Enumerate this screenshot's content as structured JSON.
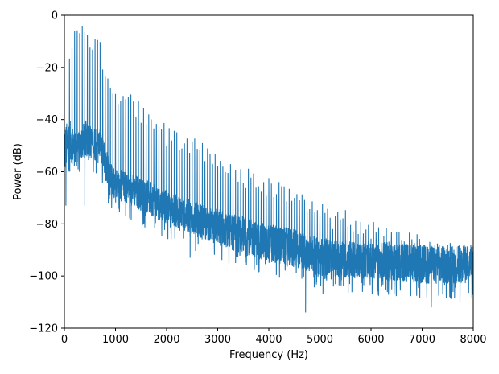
{
  "chart_data": {
    "type": "line",
    "title": "",
    "xlabel": "Frequency (Hz)",
    "ylabel": "Power (dB)",
    "xlim": [
      0,
      8000
    ],
    "ylim": [
      -120,
      0
    ],
    "x_ticks": [
      0,
      1000,
      2000,
      3000,
      4000,
      5000,
      6000,
      7000,
      8000
    ],
    "x_tick_labels": [
      "0",
      "1000",
      "2000",
      "3000",
      "4000",
      "5000",
      "6000",
      "7000",
      "8000"
    ],
    "y_ticks": [
      0,
      -20,
      -40,
      -60,
      -80,
      -100,
      -120
    ],
    "y_tick_labels": [
      "0",
      "−20",
      "−40",
      "−60",
      "−80",
      "−100",
      "−120"
    ],
    "grid": false,
    "legend": "none",
    "series_color": "#1f77b4",
    "series": [
      {
        "x": [
          0,
          100,
          200,
          300,
          400,
          500,
          600,
          700,
          800,
          900,
          1000,
          1200,
          1400,
          1600,
          1800,
          2000,
          2250,
          2500,
          2750,
          3000,
          3250,
          3500,
          3750,
          4000,
          4250,
          4500,
          4750,
          5000,
          5250,
          5500,
          5750,
          6000,
          6250,
          6500,
          6750,
          7000,
          7250,
          7500,
          7750,
          8000
        ],
        "peak": [
          -38,
          -15,
          -5,
          -1,
          0,
          -6,
          -5,
          -9,
          -20,
          -24,
          -28,
          -27,
          -32,
          -35,
          -38,
          -42,
          -44,
          -46,
          -49,
          -50,
          -55,
          -58,
          -60,
          -62,
          -64,
          -66,
          -68,
          -72,
          -74,
          -74,
          -76,
          -78,
          -80,
          -82,
          -83,
          -84,
          -86,
          -87,
          -88,
          -89
        ],
        "upper": [
          -42,
          -40,
          -44,
          -45,
          -40,
          -42,
          -43,
          -44,
          -50,
          -56,
          -58,
          -60,
          -61,
          -63,
          -65,
          -67,
          -69,
          -71,
          -73,
          -74,
          -76,
          -77,
          -79,
          -80,
          -81,
          -82,
          -84,
          -85,
          -86,
          -86,
          -87,
          -87,
          -87,
          -87,
          -88,
          -88,
          -88,
          -88,
          -88,
          -88
        ],
        "lower": [
          -62,
          -56,
          -58,
          -56,
          -54,
          -55,
          -56,
          -54,
          -64,
          -68,
          -70,
          -72,
          -74,
          -76,
          -78,
          -80,
          -82,
          -84,
          -86,
          -88,
          -90,
          -92,
          -93,
          -95,
          -96,
          -97,
          -98,
          -100,
          -100,
          -101,
          -101,
          -101,
          -102,
          -102,
          -102,
          -103,
          -103,
          -103,
          -103,
          -103
        ],
        "dips": [
          [
            30,
            -73
          ],
          [
            400,
            -73
          ],
          [
            4720,
            -114
          ],
          [
            5060,
            -107
          ],
          [
            7180,
            -112
          ],
          [
            7740,
            -110
          ],
          [
            3350,
            -95
          ],
          [
            2460,
            -93
          ],
          [
            1200,
            -77
          ]
        ]
      }
    ]
  }
}
